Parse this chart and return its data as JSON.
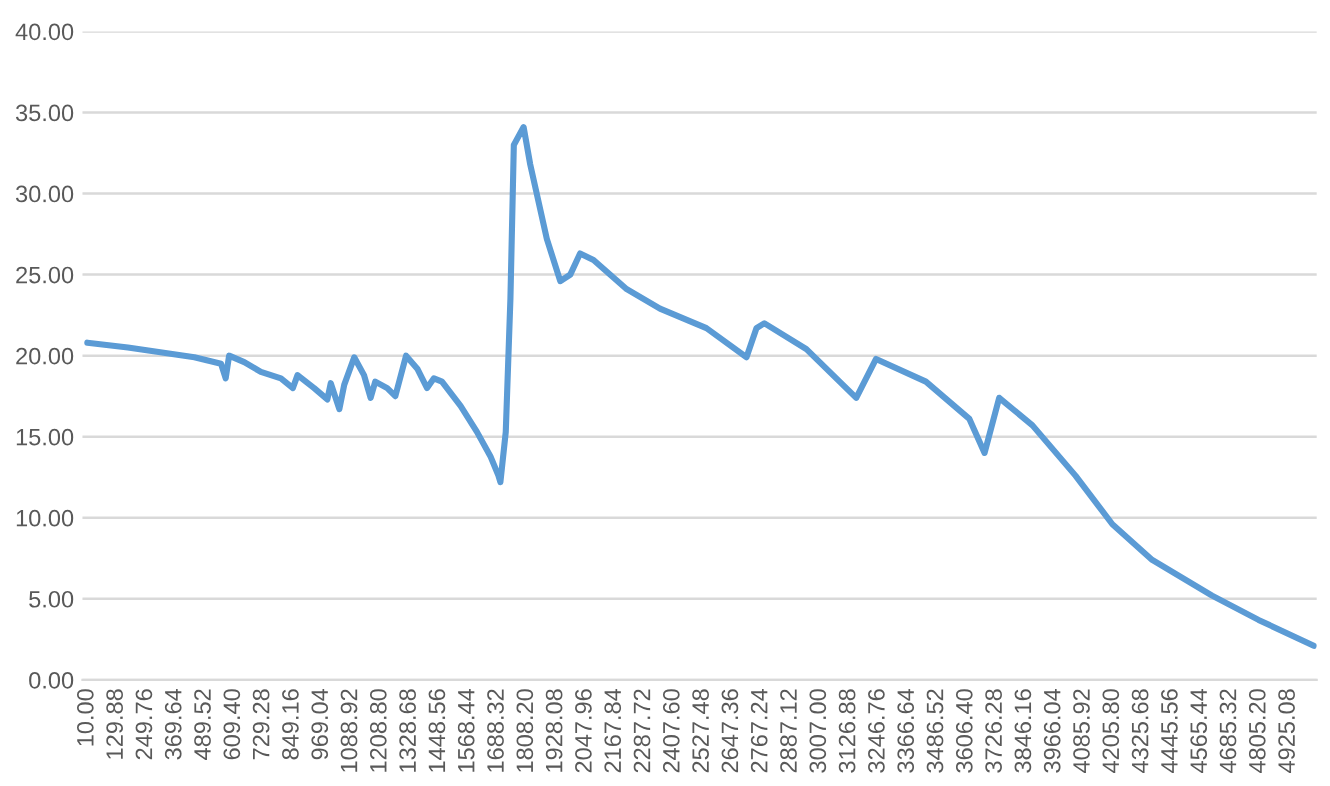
{
  "chart_data": {
    "type": "line",
    "xlim": [
      -10,
      5040
    ],
    "xticks": [
      {
        "value": 10,
        "label": "10.00"
      },
      {
        "value": 129.88,
        "label": "129.88"
      },
      {
        "value": 249.76,
        "label": "249.76"
      },
      {
        "value": 369.64,
        "label": "369.64"
      },
      {
        "value": 489.52,
        "label": "489.52"
      },
      {
        "value": 609.4,
        "label": "609.40"
      },
      {
        "value": 729.28,
        "label": "729.28"
      },
      {
        "value": 849.16,
        "label": "849.16"
      },
      {
        "value": 969.04,
        "label": "969.04"
      },
      {
        "value": 1088.92,
        "label": "1088.92"
      },
      {
        "value": 1208.8,
        "label": "1208.80"
      },
      {
        "value": 1328.68,
        "label": "1328.68"
      },
      {
        "value": 1448.56,
        "label": "1448.56"
      },
      {
        "value": 1568.44,
        "label": "1568.44"
      },
      {
        "value": 1688.32,
        "label": "1688.32"
      },
      {
        "value": 1808.2,
        "label": "1808.20"
      },
      {
        "value": 1928.08,
        "label": "1928.08"
      },
      {
        "value": 2047.96,
        "label": "2047.96"
      },
      {
        "value": 2167.84,
        "label": "2167.84"
      },
      {
        "value": 2287.72,
        "label": "2287.72"
      },
      {
        "value": 2407.6,
        "label": "2407.60"
      },
      {
        "value": 2527.48,
        "label": "2527.48"
      },
      {
        "value": 2647.36,
        "label": "2647.36"
      },
      {
        "value": 2767.24,
        "label": "2767.24"
      },
      {
        "value": 2887.12,
        "label": "2887.12"
      },
      {
        "value": 3007,
        "label": "3007.00"
      },
      {
        "value": 3126.88,
        "label": "3126.88"
      },
      {
        "value": 3246.76,
        "label": "3246.76"
      },
      {
        "value": 3366.64,
        "label": "3366.64"
      },
      {
        "value": 3486.52,
        "label": "3486.52"
      },
      {
        "value": 3606.4,
        "label": "3606.40"
      },
      {
        "value": 3726.28,
        "label": "3726.28"
      },
      {
        "value": 3846.16,
        "label": "3846.16"
      },
      {
        "value": 3966.04,
        "label": "3966.04"
      },
      {
        "value": 4085.92,
        "label": "4085.92"
      },
      {
        "value": 4205.8,
        "label": "4205.80"
      },
      {
        "value": 4325.68,
        "label": "4325.68"
      },
      {
        "value": 4445.56,
        "label": "4445.56"
      },
      {
        "value": 4565.44,
        "label": "4565.44"
      },
      {
        "value": 4685.32,
        "label": "4685.32"
      },
      {
        "value": 4805.2,
        "label": "4805.20"
      },
      {
        "value": 4925.08,
        "label": "4925.08"
      }
    ],
    "ylim": [
      0,
      40
    ],
    "yticks": [
      {
        "value": 0,
        "label": "0.00"
      },
      {
        "value": 5,
        "label": "5.00"
      },
      {
        "value": 10,
        "label": "10.00"
      },
      {
        "value": 15,
        "label": "15.00"
      },
      {
        "value": 20,
        "label": "20.00"
      },
      {
        "value": 25,
        "label": "25.00"
      },
      {
        "value": 30,
        "label": "30.00"
      },
      {
        "value": 35,
        "label": "35.00"
      },
      {
        "value": 40,
        "label": "40.00"
      }
    ],
    "grid": "y",
    "marker": "none",
    "line_style": "solid",
    "series": [
      {
        "color": "#5b9bd5",
        "x": [
          10,
          176,
          448,
          557,
          576,
          590,
          652,
          720,
          802,
          851,
          870,
          938,
          992,
          1006,
          1041,
          1061,
          1102,
          1142,
          1169,
          1188,
          1237,
          1270,
          1314,
          1360,
          1400,
          1428,
          1461,
          1537,
          1604,
          1659,
          1692,
          1700,
          1722,
          1741,
          1755,
          1795,
          1822,
          1890,
          1945,
          1986,
          2026,
          2081,
          2217,
          2353,
          2543,
          2707,
          2748,
          2780,
          2952,
          3156,
          3237,
          3441,
          3619,
          3681,
          3741,
          3877,
          4053,
          4204,
          4367,
          4612,
          4802,
          5028
        ],
        "values": [
          20.8,
          20.5,
          19.9,
          19.5,
          18.6,
          20.0,
          19.6,
          19.0,
          18.6,
          18.0,
          18.8,
          18.0,
          17.3,
          18.3,
          16.7,
          18.2,
          19.9,
          18.8,
          17.4,
          18.4,
          18.0,
          17.5,
          20.0,
          19.2,
          18.0,
          18.6,
          18.4,
          16.9,
          15.3,
          13.8,
          12.6,
          12.2,
          15.3,
          23.5,
          33.0,
          34.1,
          31.8,
          27.2,
          24.6,
          25.0,
          26.3,
          25.9,
          24.1,
          22.9,
          21.7,
          19.9,
          21.7,
          22.0,
          20.4,
          17.4,
          19.8,
          18.4,
          16.1,
          14.0,
          17.4,
          15.7,
          12.6,
          9.6,
          7.4,
          5.2,
          3.7,
          2.1
        ]
      }
    ]
  }
}
